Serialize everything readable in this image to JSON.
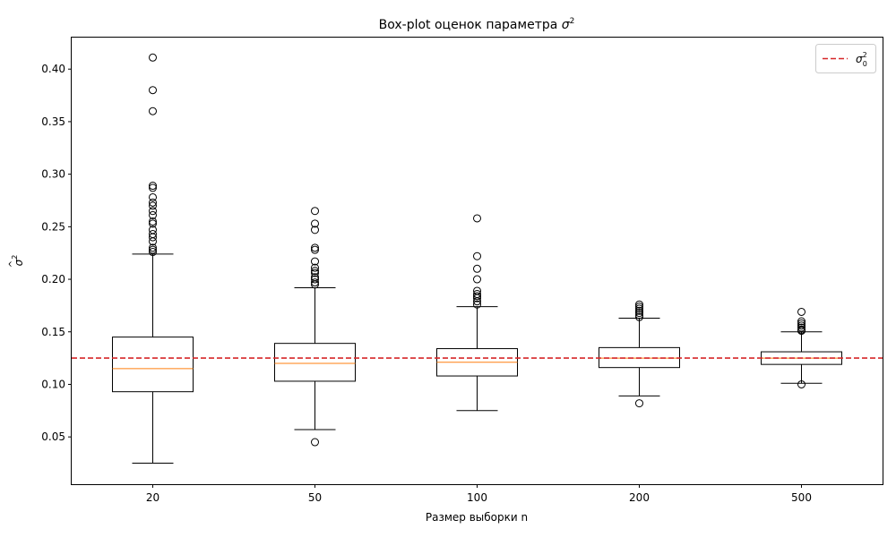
{
  "chart_data": {
    "type": "box",
    "title_prefix": "Box-plot оценок параметра ",
    "title_symbol": "σ",
    "title_exp": "2",
    "xlabel": "Размер выборки n",
    "ylabel_symbol": "σ",
    "ylabel_hat": "^",
    "ylabel_exp": "2",
    "categories": [
      "20",
      "50",
      "100",
      "200",
      "500"
    ],
    "ylim": [
      0.005,
      0.43
    ],
    "yticks": [
      0.05,
      0.1,
      0.15,
      0.2,
      0.25,
      0.3,
      0.35,
      0.4
    ],
    "ytick_labels": [
      "0.05",
      "0.10",
      "0.15",
      "0.20",
      "0.25",
      "0.30",
      "0.35",
      "0.40"
    ],
    "reference_line": {
      "value": 0.125,
      "color": "#d62728",
      "style": "dashed"
    },
    "legend": {
      "placement": "top-right",
      "symbol": "σ",
      "sup": "2",
      "sub": "0"
    },
    "colors": {
      "box": "#000000",
      "median": "#ff7f0e",
      "reference": "#d62728"
    },
    "boxes": [
      {
        "category": "20",
        "whisker_low": 0.025,
        "q1": 0.093,
        "median": 0.115,
        "q3": 0.145,
        "whisker_high": 0.224,
        "outliers": [
          0.226,
          0.228,
          0.23,
          0.236,
          0.24,
          0.243,
          0.247,
          0.253,
          0.255,
          0.261,
          0.265,
          0.27,
          0.273,
          0.278,
          0.287,
          0.289,
          0.36,
          0.38,
          0.411
        ]
      },
      {
        "category": "50",
        "whisker_low": 0.057,
        "q1": 0.103,
        "median": 0.12,
        "q3": 0.139,
        "whisker_high": 0.192,
        "outliers": [
          0.045,
          0.195,
          0.197,
          0.2,
          0.202,
          0.206,
          0.208,
          0.211,
          0.217,
          0.228,
          0.23,
          0.247,
          0.253,
          0.265
        ]
      },
      {
        "category": "100",
        "whisker_low": 0.075,
        "q1": 0.108,
        "median": 0.121,
        "q3": 0.134,
        "whisker_high": 0.174,
        "outliers": [
          0.176,
          0.179,
          0.182,
          0.184,
          0.186,
          0.189,
          0.2,
          0.21,
          0.222,
          0.258
        ]
      },
      {
        "category": "200",
        "whisker_low": 0.089,
        "q1": 0.116,
        "median": 0.125,
        "q3": 0.135,
        "whisker_high": 0.163,
        "outliers": [
          0.082,
          0.164,
          0.166,
          0.168,
          0.17,
          0.172,
          0.174,
          0.176
        ]
      },
      {
        "category": "500",
        "whisker_low": 0.101,
        "q1": 0.119,
        "median": 0.125,
        "q3": 0.131,
        "whisker_high": 0.15,
        "outliers": [
          0.1,
          0.151,
          0.152,
          0.154,
          0.156,
          0.158,
          0.16,
          0.169
        ]
      }
    ]
  }
}
